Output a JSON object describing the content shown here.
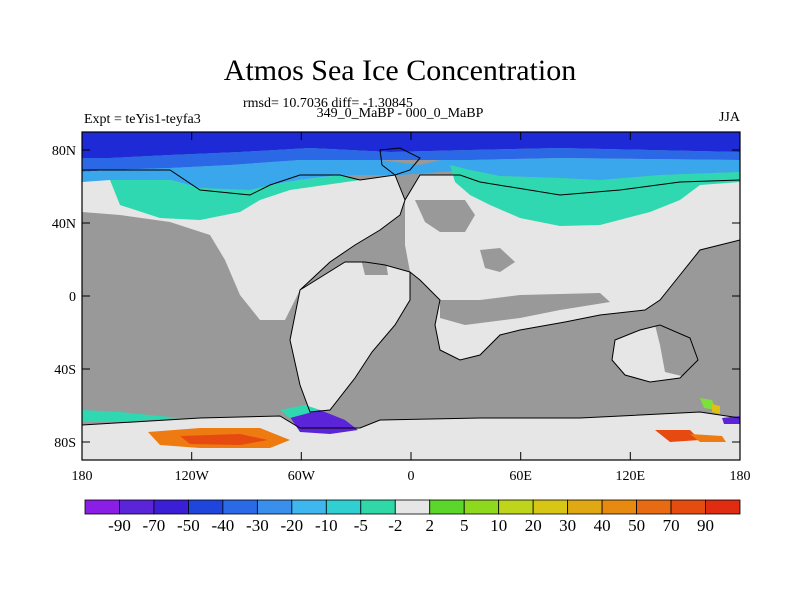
{
  "title": "Atmos Sea Ice Concentration",
  "stats": "rmsd= 10.7036 diff= -1.30845",
  "subtitle": "349_0_MaBP - 000_0_MaBP",
  "experiment": "Expt = teYis1-teyfa3",
  "season": "JJA",
  "map": {
    "lat_ticks": [
      "80N",
      "40N",
      "0",
      "40S",
      "80S"
    ],
    "lon_ticks": [
      "180",
      "120W",
      "60W",
      "0",
      "60E",
      "120E",
      "180"
    ],
    "colors": {
      "land": "#e6e6e6",
      "no_ice": "#999999",
      "blue_deep": "#1e2ad6",
      "blue_mid": "#2a68e6",
      "blue_light": "#3aa6ec",
      "cyan": "#2ec8d8",
      "teal": "#2fd8b0",
      "orange": "#ee7b12",
      "orange_red": "#e64a10",
      "yellow": "#e0c010",
      "green": "#7ee03a",
      "purple": "#5b24d8"
    }
  },
  "colorbar": {
    "labels": [
      "-90",
      "-70",
      "-50",
      "-40",
      "-30",
      "-20",
      "-10",
      "-5",
      "-2",
      "2",
      "5",
      "10",
      "20",
      "30",
      "40",
      "50",
      "70",
      "90"
    ],
    "colors": [
      "#8a1ee6",
      "#5b24d8",
      "#3b1fd6",
      "#1e46dc",
      "#2a6ae6",
      "#3a8fec",
      "#40b6ee",
      "#30cfd2",
      "#30d8a8",
      "#e6e6e6",
      "#5cd62a",
      "#8ed91e",
      "#bfd51c",
      "#d8c616",
      "#e0a812",
      "#e88a10",
      "#e86a12",
      "#e44c10",
      "#e02c10"
    ]
  }
}
